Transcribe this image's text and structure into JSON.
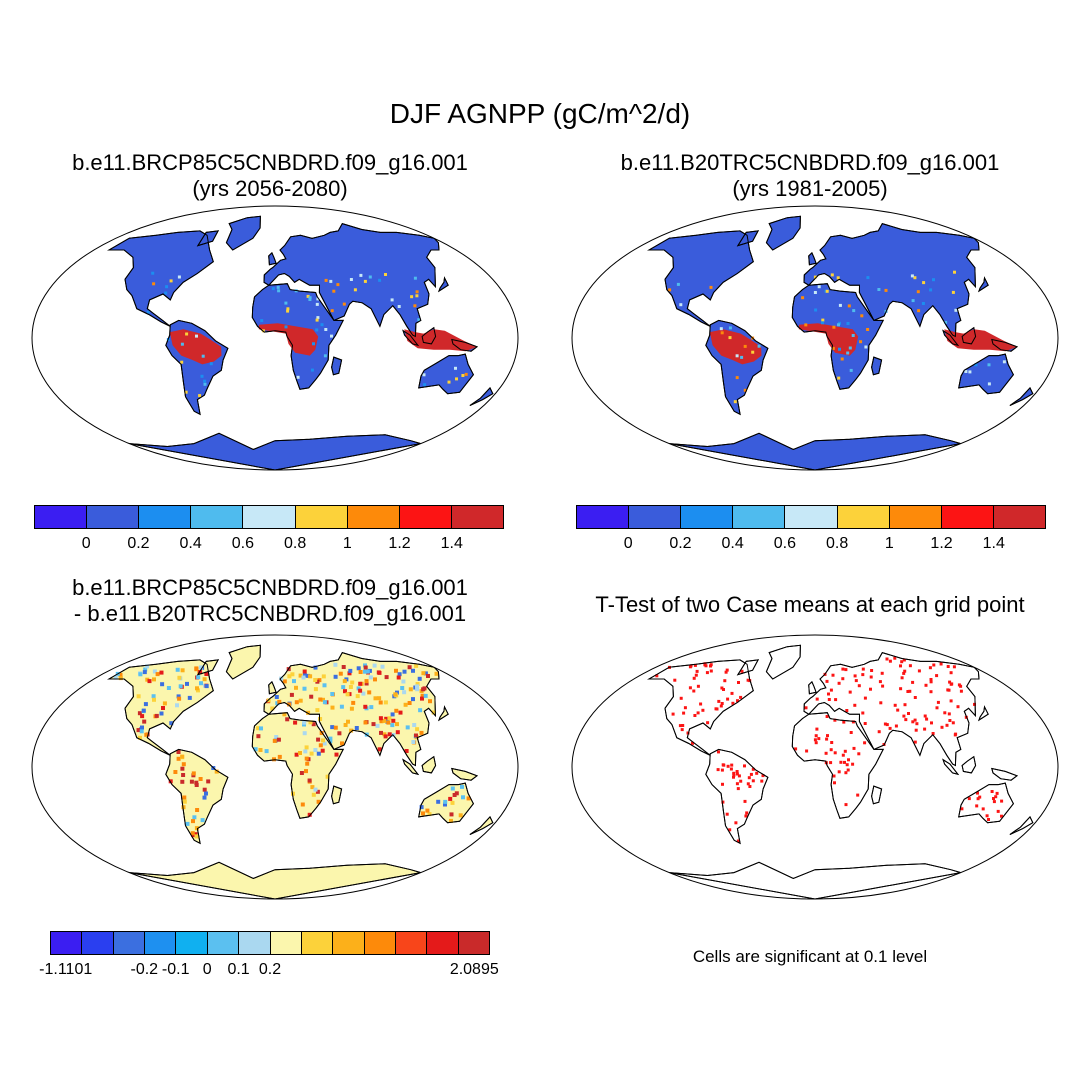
{
  "title": "DJF AGNPP (gC/m^2/d)",
  "panels": [
    {
      "title_line1": "b.e11.BRCP85C5CNBDRD.f09_g16.001",
      "title_line2": "(yrs 2056-2080)"
    },
    {
      "title_line1": "b.e11.B20TRC5CNBDRD.f09_g16.001",
      "title_line2": "(yrs 1981-2005)"
    },
    {
      "title_line1": "b.e11.BRCP85C5CNBDRD.f09_g16.001",
      "title_line2": "- b.e11.B20TRC5CNBDRD.f09_g16.001"
    },
    {
      "title_line1": "T-Test of two Case means at each grid point"
    }
  ],
  "colorbar_abs": {
    "colors": [
      "#3b1ef2",
      "#3a5cdb",
      "#1c8ef0",
      "#4fbbee",
      "#c7e8f7",
      "#fcd23a",
      "#fd8a0a",
      "#fc1414",
      "#d0282a"
    ],
    "labels": [
      "0",
      "0.2",
      "0.4",
      "0.6",
      "0.8",
      "1",
      "1.2",
      "1.4"
    ]
  },
  "colorbar_diff": {
    "colors": [
      "#3b1ef2",
      "#2a3ff0",
      "#3b6fe0",
      "#1e90f0",
      "#10b0f0",
      "#5bc0f0",
      "#aad8f0",
      "#fbf6ad",
      "#fcd23a",
      "#fcb01a",
      "#fd8a0a",
      "#f8451a",
      "#e41a1a",
      "#c92a2a"
    ],
    "labels": [
      "-1.1101",
      "-0.2",
      "-0.1",
      "0",
      "0.1",
      "0.2",
      "2.0895"
    ]
  },
  "note": "Cells are significant at 0.1 level",
  "colors": {
    "ocean": "#ffffff",
    "land_abs": "#3a5cdb",
    "tropics_abs": "#d0282a",
    "land_diff": "#fbf6ad",
    "signif": "#fc1414"
  }
}
